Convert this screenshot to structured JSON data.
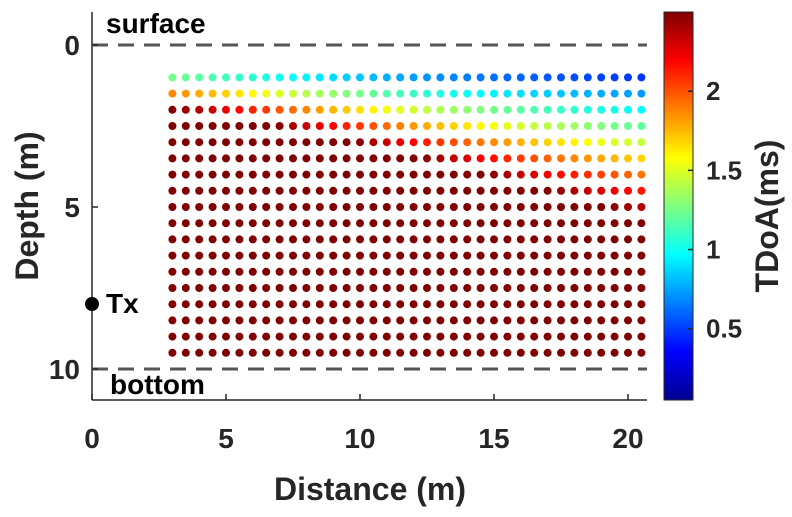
{
  "chart_data": {
    "type": "scatter",
    "title": "",
    "xlabel": "Distance (m)",
    "ylabel": "Depth (m)",
    "xlim": [
      0,
      21
    ],
    "ylim": [
      -1,
      11
    ],
    "y_reversed": true,
    "grid": false,
    "xticks": [
      0,
      5,
      10,
      15,
      20
    ],
    "yticks": [
      0,
      5,
      10
    ],
    "colorbar": {
      "label": "TDoA(ms)",
      "colormap": "jet",
      "range": [
        0.05,
        2.5
      ],
      "ticks": [
        0.5,
        1,
        1.5,
        2
      ],
      "location": "right"
    },
    "grid_points": {
      "x_start": 3,
      "x_end": 20.5,
      "x_step": 0.5,
      "y_start": 1,
      "y_end": 9.5,
      "y_step": 0.5
    },
    "transmitter": {
      "label": "Tx",
      "x": 0,
      "y": 8
    },
    "surface_line": {
      "label": "surface",
      "depth": 0
    },
    "bottom_line": {
      "label": "bottom",
      "depth": 10
    },
    "tdoa_model": {
      "sound_speed_m_per_ms": 1.5,
      "surface_depth": 0,
      "bottom_depth": 10
    }
  }
}
